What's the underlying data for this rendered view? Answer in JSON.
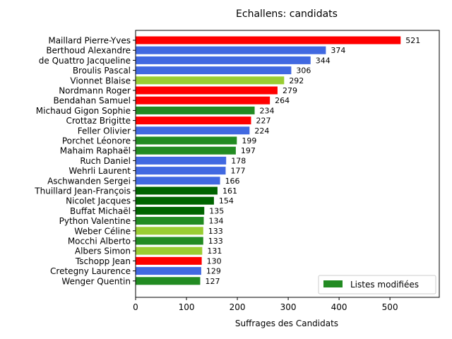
{
  "chart_data": {
    "type": "bar",
    "orientation": "horizontal",
    "title": "Echallens: candidats",
    "xlabel": "Suffrages des Candidats",
    "ylabel": "",
    "xlim": [
      0,
      597
    ],
    "xticks": [
      0,
      100,
      200,
      300,
      400,
      500
    ],
    "grid": false,
    "legend": {
      "placement": "lower-right",
      "entries": [
        {
          "label": "Listes modifiées",
          "color": "#228B22"
        }
      ]
    },
    "categories": [
      "Maillard Pierre-Yves",
      "Berthoud Alexandre",
      "de Quattro Jacqueline",
      "Broulis Pascal",
      "Vionnet Blaise",
      "Nordmann Roger",
      "Bendahan Samuel",
      "Michaud Gigon Sophie",
      "Crottaz Brigitte",
      "Feller Olivier",
      "Porchet Léonore",
      "Mahaim Raphaël",
      "Ruch Daniel",
      "Wehrli Laurent",
      "Aschwanden Sergei",
      "Thuillard Jean-François",
      "Nicolet Jacques",
      "Buffat Michaël",
      "Python Valentine",
      "Weber Céline",
      "Mocchi Alberto",
      "Albers Simon",
      "Tschopp Jean",
      "Cretegny Laurence",
      "Wenger Quentin"
    ],
    "values": [
      521,
      374,
      344,
      306,
      292,
      279,
      264,
      234,
      227,
      224,
      199,
      197,
      178,
      177,
      166,
      161,
      154,
      135,
      134,
      133,
      133,
      131,
      130,
      129,
      127
    ],
    "value_labels": [
      "521",
      "374",
      "344",
      "306",
      "292",
      "279",
      "264",
      "234",
      "227",
      "224",
      "199",
      "197",
      "178",
      "177",
      "166",
      "161",
      "154",
      "135",
      "134",
      "133",
      "133",
      "131",
      "130",
      "129",
      "127"
    ],
    "colors": [
      "#FF0000",
      "#4169E1",
      "#4169E1",
      "#4169E1",
      "#9ACD32",
      "#FF0000",
      "#FF0000",
      "#228B22",
      "#FF0000",
      "#4169E1",
      "#228B22",
      "#228B22",
      "#4169E1",
      "#4169E1",
      "#4169E1",
      "#006400",
      "#006400",
      "#006400",
      "#228B22",
      "#9ACD32",
      "#228B22",
      "#9ACD32",
      "#FF0000",
      "#4169E1",
      "#228B22"
    ]
  }
}
